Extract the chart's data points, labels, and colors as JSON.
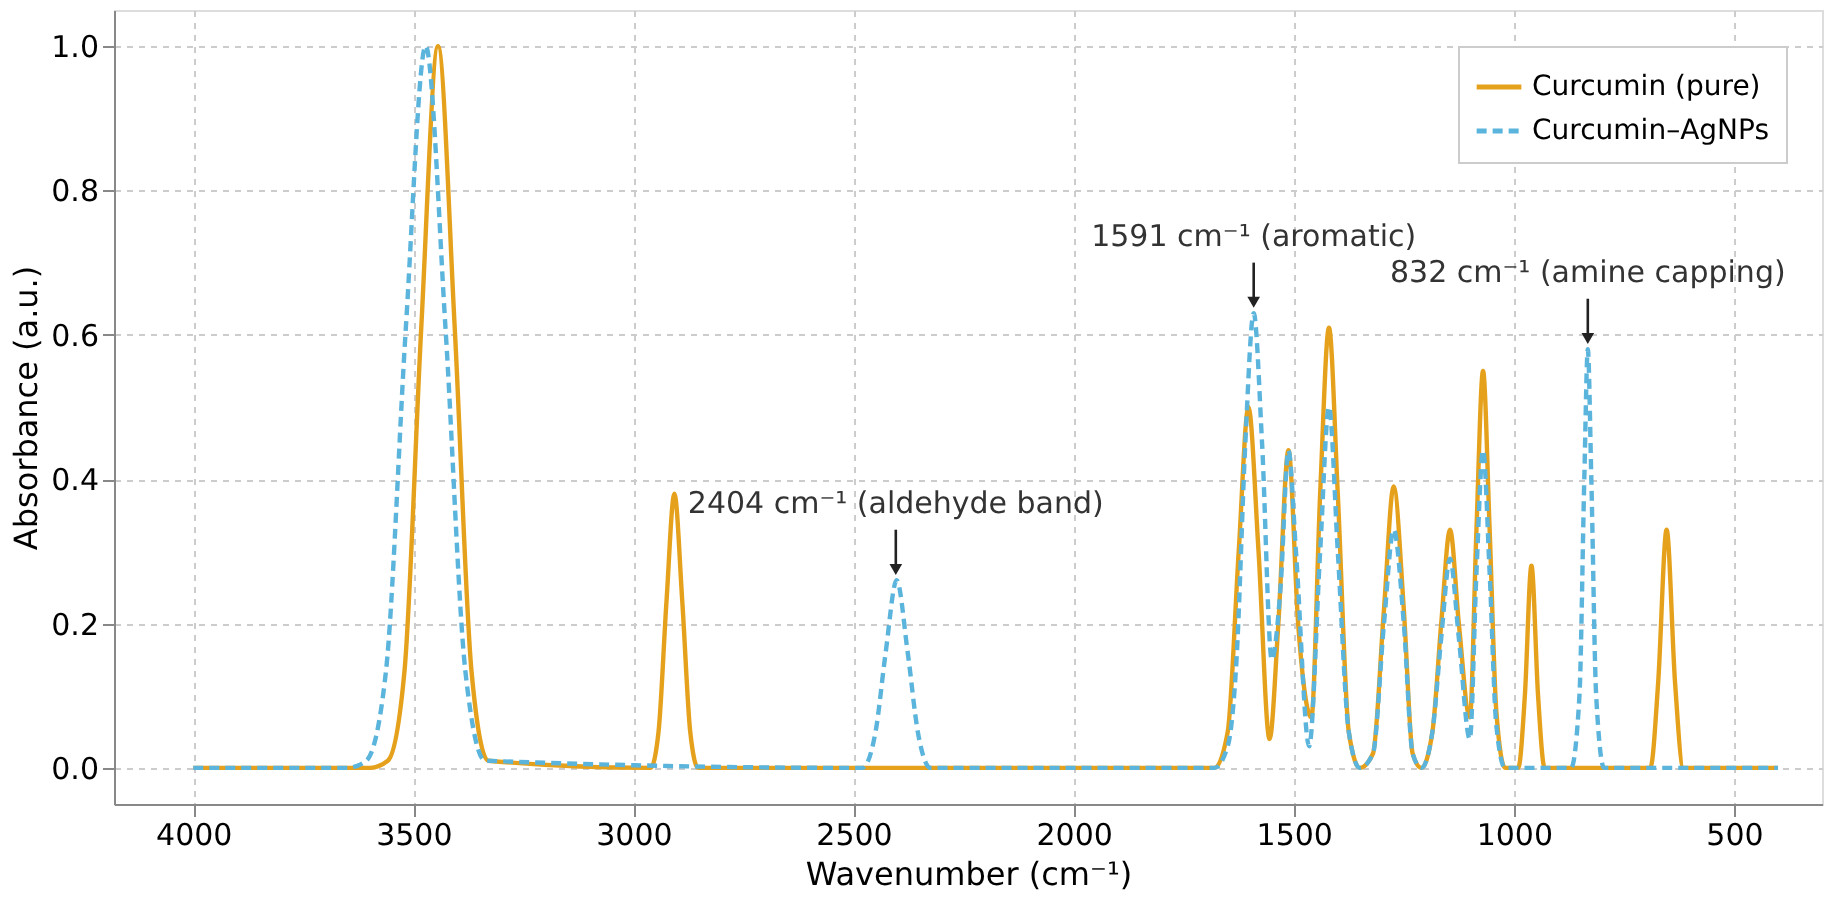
{
  "chart_data": {
    "type": "line",
    "xlabel": "Wavenumber (cm⁻¹)",
    "ylabel": "Absorbance (a.u.)",
    "xlim": [
      4180,
      300
    ],
    "xticks": [
      4000,
      3500,
      3000,
      2500,
      2000,
      1500,
      1000,
      500
    ],
    "ylim": [
      -0.05,
      1.05
    ],
    "yticks": [
      {
        "value": 0,
        "label": "0.0"
      },
      {
        "value": 0.2,
        "label": "0.2"
      },
      {
        "value": 0.4,
        "label": "0.4"
      },
      {
        "value": 0.6,
        "label": "0.6"
      },
      {
        "value": 0.8,
        "label": "0.8"
      },
      {
        "value": 1,
        "label": "1.0"
      }
    ],
    "grid": true,
    "legend": "top right",
    "series": [
      {
        "name": "Curcumin (pure)",
        "color": "#e5a11c",
        "line_style": "solid",
        "x": [
          4000,
          3600,
          3558,
          3520,
          3482,
          3444,
          3406,
          3368,
          3330,
          2961,
          2943,
          2925,
          2907,
          2889,
          2871,
          2853,
          1680,
          1650,
          1625,
          1603,
          1580,
          1555,
          1535,
          1512,
          1490,
          1460,
          1440,
          1420,
          1400,
          1375,
          1350,
          1320,
          1295,
          1273,
          1250,
          1230,
          1210,
          1185,
          1165,
          1145,
          1125,
          1100,
          1085,
          1070,
          1055,
          1040,
          1020,
          990,
          975,
          960,
          945,
          930,
          690,
          672,
          653,
          634,
          615,
          400
        ],
        "values": [
          0,
          0,
          0.01,
          0.135,
          0.61,
          1.0,
          0.61,
          0.135,
          0.01,
          0,
          0.05,
          0.23,
          0.38,
          0.23,
          0.05,
          0,
          0,
          0.05,
          0.3,
          0.5,
          0.3,
          0.04,
          0.2,
          0.44,
          0.2,
          0.07,
          0.38,
          0.61,
          0.38,
          0.05,
          0,
          0.02,
          0.22,
          0.39,
          0.22,
          0.02,
          0,
          0.05,
          0.2,
          0.33,
          0.2,
          0.07,
          0.33,
          0.55,
          0.33,
          0.08,
          0,
          0,
          0.1,
          0.28,
          0.1,
          0,
          0,
          0.12,
          0.33,
          0.12,
          0,
          0
        ]
      },
      {
        "name": "Curcumin–AgNPs",
        "color": "#5ab4dc",
        "line_style": "dashed",
        "x": [
          4000,
          3650,
          3607,
          3562,
          3517,
          3472,
          3427,
          3382,
          3337,
          2480,
          2450,
          2427,
          2402,
          2377,
          2354,
          2325,
          1680,
          1650,
          1630,
          1610,
          1591,
          1572,
          1550,
          1530,
          1512,
          1495,
          1465,
          1440,
          1420,
          1400,
          1375,
          1350,
          1320,
          1295,
          1273,
          1250,
          1230,
          1210,
          1185,
          1165,
          1145,
          1125,
          1100,
          1085,
          1070,
          1055,
          1040,
          1020,
          870,
          851,
          840,
          832,
          824,
          813,
          795,
          400
        ],
        "values": [
          0,
          0,
          0.01,
          0.135,
          0.61,
          1.0,
          0.61,
          0.135,
          0.01,
          0,
          0.05,
          0.16,
          0.26,
          0.16,
          0.05,
          0,
          0,
          0.03,
          0.15,
          0.45,
          0.63,
          0.45,
          0.15,
          0.25,
          0.44,
          0.3,
          0.03,
          0.3,
          0.5,
          0.3,
          0.05,
          0,
          0.02,
          0.2,
          0.33,
          0.2,
          0.02,
          0,
          0.05,
          0.18,
          0.29,
          0.18,
          0.04,
          0.27,
          0.44,
          0.27,
          0.06,
          0,
          0,
          0.1,
          0.4,
          0.58,
          0.4,
          0.1,
          0,
          0
        ]
      }
    ],
    "annotations": [
      {
        "text": "2404 cm⁻¹ (aldehyde band)",
        "x": 2404,
        "y": 0.26
      },
      {
        "text": "1591 cm⁻¹ (aromatic)",
        "x": 1591,
        "y": 0.63
      },
      {
        "text": "832 cm⁻¹ (amine capping)",
        "x": 832,
        "y": 0.58
      }
    ]
  }
}
